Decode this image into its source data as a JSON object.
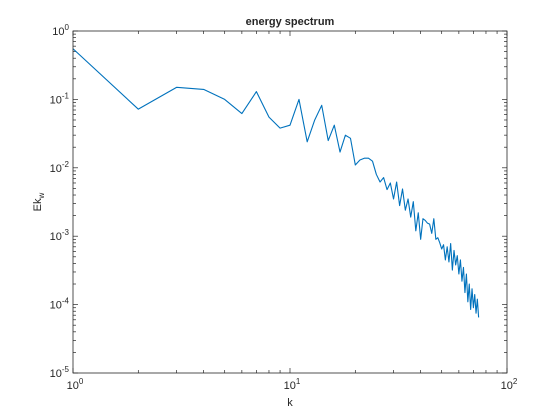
{
  "chart_data": {
    "type": "line",
    "title": "energy spectrum",
    "xlabel": "k",
    "ylabel_main": "Ek",
    "ylabel_sub": "w",
    "xscale": "log",
    "yscale": "log",
    "xlim": [
      1,
      100
    ],
    "ylim": [
      1e-05,
      1
    ],
    "xticks": [
      {
        "value": 1,
        "base": "10",
        "exp": "0"
      },
      {
        "value": 10,
        "base": "10",
        "exp": "1"
      },
      {
        "value": 100,
        "base": "10",
        "exp": "2"
      }
    ],
    "yticks": [
      {
        "value": 1e-05,
        "base": "10",
        "exp": "-5"
      },
      {
        "value": 0.0001,
        "base": "10",
        "exp": "-4"
      },
      {
        "value": 0.001,
        "base": "10",
        "exp": "-3"
      },
      {
        "value": 0.01,
        "base": "10",
        "exp": "-2"
      },
      {
        "value": 0.1,
        "base": "10",
        "exp": "-1"
      },
      {
        "value": 1,
        "base": "10",
        "exp": "0"
      }
    ],
    "grid": false,
    "series_color": "#0072BD",
    "series": [
      {
        "x": [
          1,
          2,
          3,
          4,
          5,
          6,
          7,
          8,
          9,
          10,
          11,
          12,
          13,
          14,
          15,
          16,
          17,
          18,
          19,
          20,
          21,
          22,
          23,
          24,
          25,
          26,
          27,
          28,
          29,
          30,
          31,
          32,
          33,
          34,
          35,
          36,
          37,
          38,
          39,
          40,
          41,
          42,
          43,
          44,
          45,
          46,
          47,
          48,
          49,
          50,
          51,
          52,
          53,
          54,
          55,
          56,
          57,
          58,
          59,
          60,
          61,
          62,
          63,
          64,
          65,
          66,
          67,
          68,
          69,
          70,
          71,
          72,
          73,
          74
        ],
        "y": [
          0.55,
          0.072,
          0.15,
          0.14,
          0.1,
          0.062,
          0.13,
          0.055,
          0.038,
          0.042,
          0.1,
          0.024,
          0.05,
          0.082,
          0.025,
          0.042,
          0.017,
          0.03,
          0.027,
          0.011,
          0.013,
          0.0138,
          0.0138,
          0.0125,
          0.008,
          0.0062,
          0.0072,
          0.0048,
          0.006,
          0.0035,
          0.0062,
          0.0028,
          0.0049,
          0.0024,
          0.0035,
          0.0019,
          0.0032,
          0.0012,
          0.0022,
          0.0009,
          0.0018,
          0.0017,
          0.00155,
          0.0015,
          0.0011,
          0.0018,
          0.0009,
          0.00095,
          0.0008,
          0.00065,
          0.00075,
          0.00045,
          0.0007,
          0.00042,
          0.00078,
          0.00032,
          0.00062,
          0.00038,
          0.00052,
          0.00028,
          0.00045,
          0.00022,
          0.00035,
          0.00015,
          0.00028,
          0.00011,
          0.0002,
          8.5e-05,
          0.00017,
          9e-05,
          0.00014,
          7.5e-05,
          0.00012,
          6.5e-05
        ]
      }
    ]
  }
}
